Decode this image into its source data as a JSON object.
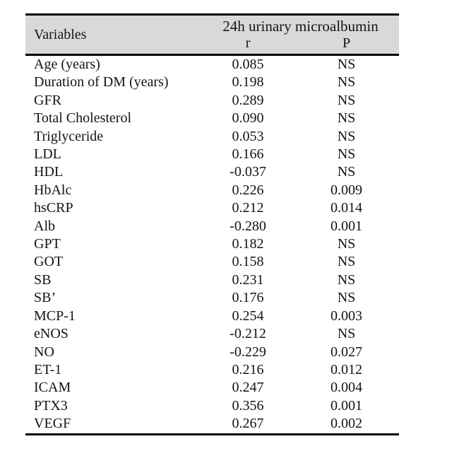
{
  "table": {
    "header": {
      "variables": "Variables",
      "group": "24h urinary microalbumin",
      "r": "r",
      "p": "P"
    },
    "colors": {
      "header_bg": "#d9d9d9",
      "border": "#000000",
      "text": "#141414",
      "page_bg": "#ffffff"
    },
    "rows": [
      {
        "variable": "Age (years)",
        "r": "0.085",
        "p": "NS"
      },
      {
        "variable": "Duration of DM (years)",
        "r": "0.198",
        "p": "NS"
      },
      {
        "variable": "GFR",
        "r": "0.289",
        "p": "NS"
      },
      {
        "variable": "Total Cholesterol",
        "r": "0.090",
        "p": "NS"
      },
      {
        "variable": "Triglyceride",
        "r": "0.053",
        "p": "NS"
      },
      {
        "variable": "LDL",
        "r": "0.166",
        "p": "NS"
      },
      {
        "variable": "HDL",
        "r": "-0.037",
        "p": "NS"
      },
      {
        "variable": "HbAlc",
        "r": "0.226",
        "p": "0.009"
      },
      {
        "variable": "hsCRP",
        "r": "0.212",
        "p": "0.014"
      },
      {
        "variable": "Alb",
        "r": "-0.280",
        "p": "0.001"
      },
      {
        "variable": "GPT",
        "r": "0.182",
        "p": "NS"
      },
      {
        "variable": "GOT",
        "r": "0.158",
        "p": "NS"
      },
      {
        "variable": "SB",
        "r": "0.231",
        "p": "NS"
      },
      {
        "variable": "SB’",
        "r": "0.176",
        "p": "NS"
      },
      {
        "variable": "MCP-1",
        "r": "0.254",
        "p": "0.003"
      },
      {
        "variable": "eNOS",
        "r": "-0.212",
        "p": "NS"
      },
      {
        "variable": "NO",
        "r": "-0.229",
        "p": "0.027"
      },
      {
        "variable": "ET-1",
        "r": "0.216",
        "p": "0.012"
      },
      {
        "variable": "ICAM",
        "r": "0.247",
        "p": "0.004"
      },
      {
        "variable": "PTX3",
        "r": "0.356",
        "p": "0.001"
      },
      {
        "variable": "VEGF",
        "r": "0.267",
        "p": "0.002"
      }
    ]
  }
}
